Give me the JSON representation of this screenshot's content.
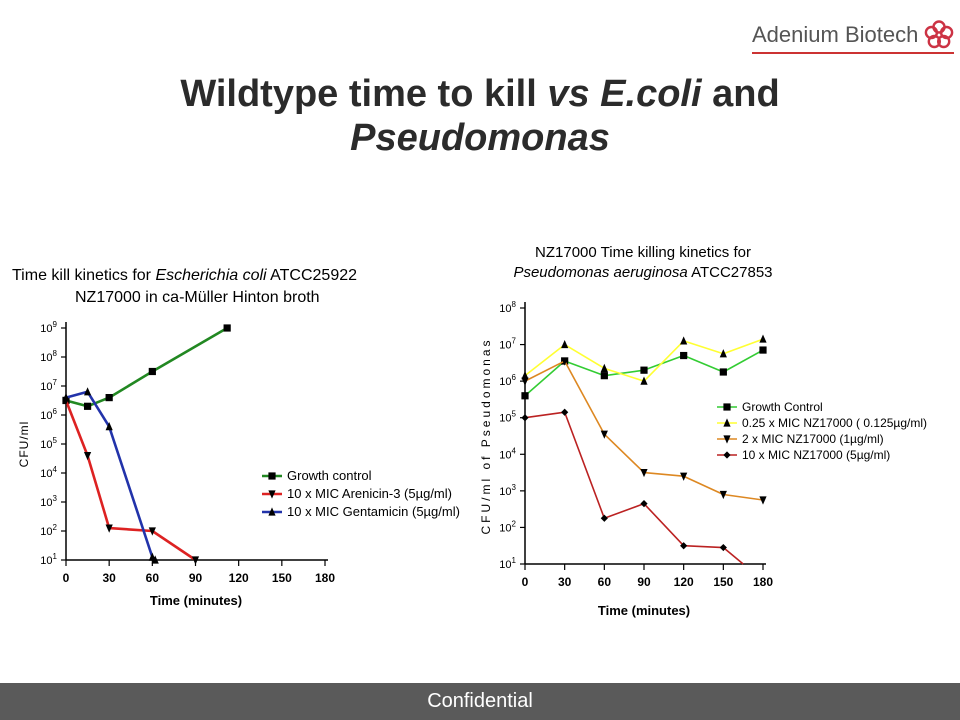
{
  "brand": {
    "name": "Adenium Biotech",
    "icon": "flower-icon",
    "color": "#cc3344"
  },
  "slide": {
    "title_line1_a": "Wildtype time to kill ",
    "title_line1_b": "vs E.coli",
    "title_line1_c": " and",
    "title_line2": "Pseudomonas"
  },
  "footer": {
    "label": "Confidential"
  },
  "chart_data": [
    {
      "type": "line",
      "title_line1_a": "Time kill kinetics for ",
      "title_line1_b": "Escherichia coli",
      "title_line1_c": " ATCC25922",
      "title_line2": "NZ17000 in ca-Müller Hinton broth",
      "xlabel": "Time (minutes)",
      "ylabel": "CFU/ml",
      "xlim": [
        0,
        180
      ],
      "ylim_log10": [
        1,
        9
      ],
      "y_scale": "log",
      "x_ticks": [
        "0",
        "30",
        "60",
        "90",
        "120",
        "150",
        "180"
      ],
      "y_ticks": [
        "1",
        "2",
        "3",
        "4",
        "5",
        "6",
        "7",
        "8",
        "9"
      ],
      "legend_position": "lower-right",
      "series": [
        {
          "name": "Growth control",
          "color": "#228822",
          "marker": "square",
          "x": [
            0,
            15,
            30,
            60,
            112
          ],
          "log10_y": [
            6.5,
            6.3,
            6.6,
            7.5,
            9.0
          ]
        },
        {
          "name": "10 x MIC Arenicin-3 (5µg/ml)",
          "color": "#dd2222",
          "marker": "triangle-down",
          "x": [
            0,
            15,
            30,
            60,
            90
          ],
          "log10_y": [
            6.5,
            4.6,
            2.1,
            2.0,
            1.0
          ]
        },
        {
          "name": "10 x MIC Gentamicin (5µg/ml)",
          "color": "#2233aa",
          "marker": "triangle-up",
          "x": [
            0,
            15,
            30,
            60,
            62
          ],
          "log10_y": [
            6.6,
            6.8,
            5.6,
            1.1,
            1.0
          ]
        }
      ]
    },
    {
      "type": "line",
      "title_line1": "NZ17000 Time killing kinetics for",
      "title_line2_a": "Pseudomonas aeruginosa",
      "title_line2_b": " ATCC27853",
      "xlabel": "Time (minutes)",
      "ylabel": "CFU/ml of Pseudomonas",
      "xlim": [
        0,
        180
      ],
      "ylim_log10": [
        1,
        8
      ],
      "y_scale": "log",
      "x_ticks": [
        "0",
        "30",
        "60",
        "90",
        "120",
        "150",
        "180"
      ],
      "y_ticks": [
        "1",
        "2",
        "3",
        "4",
        "5",
        "6",
        "7",
        "8"
      ],
      "legend_position": "right",
      "series": [
        {
          "name": "Growth Control",
          "color": "#33cc33",
          "marker": "square",
          "x": [
            0,
            30,
            60,
            90,
            120,
            150,
            180
          ],
          "log10_y": [
            5.6,
            6.55,
            6.15,
            6.3,
            6.7,
            6.25,
            6.85
          ]
        },
        {
          "name": "0.25 x MIC NZ17000 ( 0.125µg/ml)",
          "color": "#ffff33",
          "marker": "triangle-up",
          "x": [
            0,
            30,
            60,
            90,
            120,
            150,
            180
          ],
          "log10_y": [
            6.15,
            7.0,
            6.35,
            6.0,
            7.1,
            6.75,
            7.15
          ]
        },
        {
          "name": "2 x MIC NZ17000 (1µg/ml)",
          "color": "#dd8822",
          "marker": "triangle-down",
          "x": [
            0,
            30,
            60,
            90,
            120,
            150,
            180
          ],
          "log10_y": [
            6.0,
            6.55,
            4.55,
            3.5,
            3.4,
            2.9,
            2.75
          ]
        },
        {
          "name": "10 x MIC NZ17000 (5µg/ml)",
          "color": "#bb2222",
          "marker": "diamond",
          "x": [
            0,
            30,
            60,
            90,
            120,
            150,
            165
          ],
          "log10_y": [
            5.0,
            5.15,
            2.25,
            2.65,
            1.5,
            1.45,
            1.0
          ]
        }
      ]
    }
  ]
}
